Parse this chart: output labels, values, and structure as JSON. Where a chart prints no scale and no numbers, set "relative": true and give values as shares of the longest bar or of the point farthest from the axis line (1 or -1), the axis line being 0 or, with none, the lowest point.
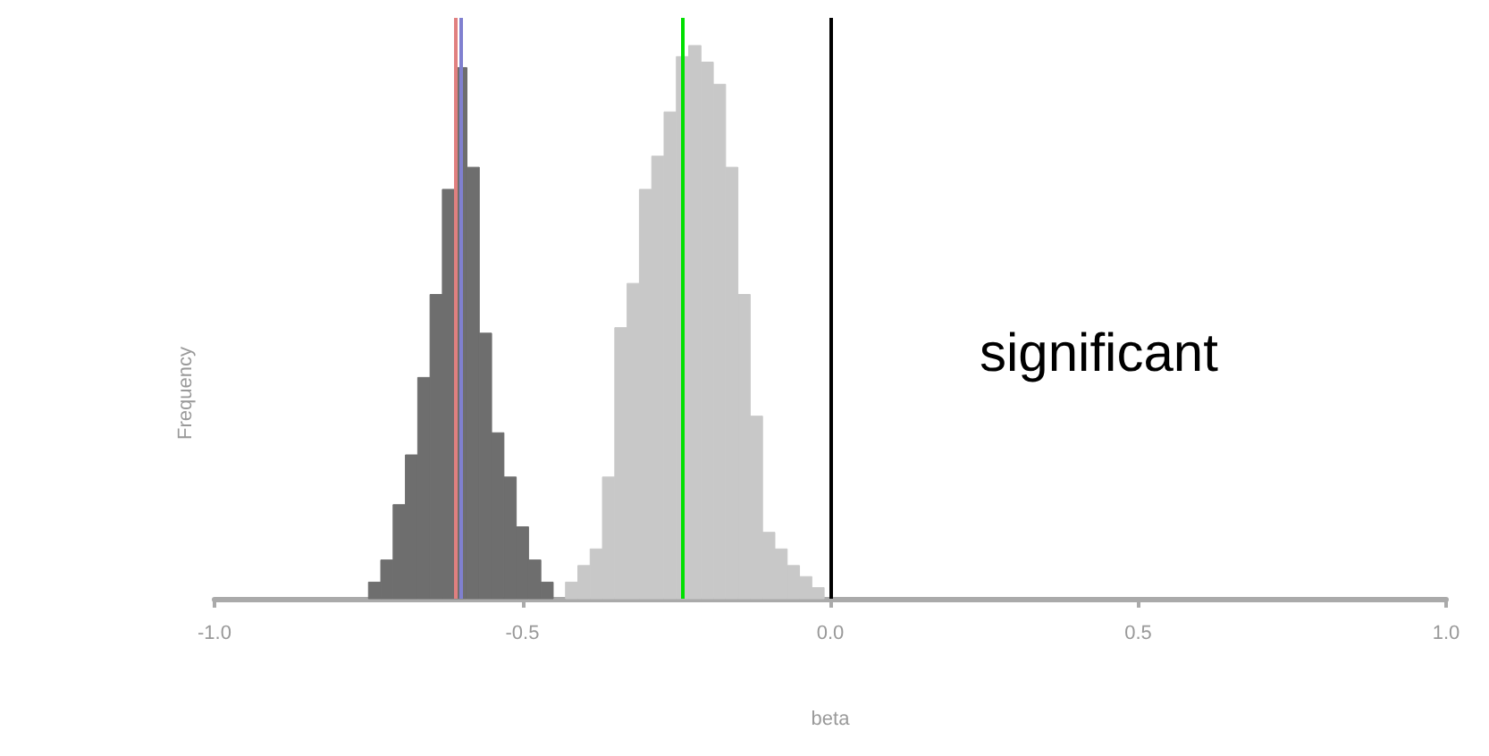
{
  "chart_data": {
    "type": "bar",
    "relative": true,
    "xlabel": "beta",
    "ylabel": "Frequency",
    "x": [
      -0.74,
      -0.72,
      -0.7,
      -0.68,
      -0.66,
      -0.64,
      -0.62,
      -0.6,
      -0.58,
      -0.56,
      -0.54,
      -0.52,
      -0.5,
      -0.48,
      -0.46,
      -0.44,
      -0.42,
      -0.4,
      -0.38,
      -0.36,
      -0.34,
      -0.32,
      -0.3,
      -0.28,
      -0.26,
      -0.24,
      -0.22,
      -0.2,
      -0.18,
      -0.16,
      -0.14,
      -0.12,
      -0.1,
      -0.08,
      -0.06,
      -0.04,
      -0.02
    ],
    "series": [
      {
        "color": "#6e6e6e",
        "values": [
          0.03,
          0.07,
          0.17,
          0.26,
          0.4,
          0.55,
          0.74,
          0.96,
          0.78,
          0.48,
          0.3,
          0.22,
          0.13,
          0.07,
          0.03,
          null,
          null,
          null,
          null,
          null,
          null,
          null,
          null,
          null,
          null,
          null,
          null,
          null,
          null,
          null,
          null,
          null,
          null,
          null,
          null,
          null,
          null
        ]
      },
      {
        "color": "#c8c8c8",
        "values": [
          null,
          null,
          null,
          null,
          null,
          null,
          null,
          null,
          null,
          null,
          null,
          null,
          null,
          null,
          null,
          null,
          0.03,
          0.06,
          0.09,
          0.22,
          0.49,
          0.57,
          0.74,
          0.8,
          0.88,
          0.98,
          1,
          0.97,
          0.93,
          0.78,
          0.55,
          0.33,
          0.12,
          0.09,
          0.06,
          0.04,
          0.02
        ]
      }
    ],
    "xlim": [
      -1,
      1
    ],
    "xticks": [
      {
        "value": -1,
        "label": "-1.0"
      },
      {
        "value": -0.5,
        "label": "-0.5"
      },
      {
        "value": 0,
        "label": "0.0"
      },
      {
        "value": 0.5,
        "label": "0.5"
      },
      {
        "value": 1,
        "label": "1.0"
      }
    ],
    "ref_lines": [
      {
        "axis": "x",
        "value": -0.605,
        "color": "#8080d0"
      },
      {
        "axis": "x",
        "value": -0.615,
        "color": "#e08080"
      },
      {
        "axis": "x",
        "value": -0.24,
        "color": "#00e000"
      },
      {
        "axis": "x",
        "value": 0,
        "color": "#000000"
      }
    ],
    "annotations": [
      "significant"
    ],
    "grid": false
  }
}
